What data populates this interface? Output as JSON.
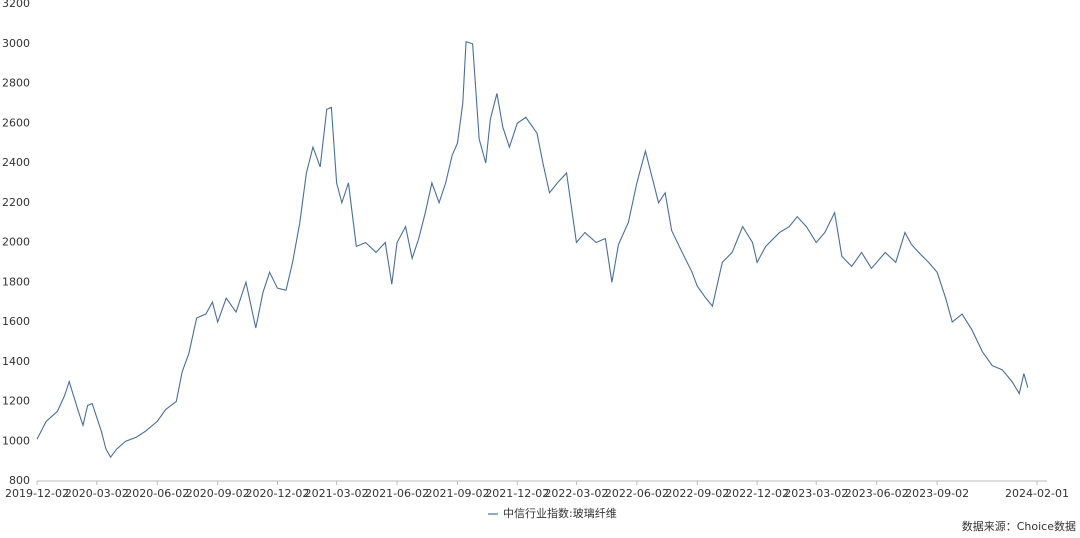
{
  "chart_data": {
    "type": "line",
    "x": [
      "2019-12-02",
      "2019-12-16",
      "2020-01-02",
      "2020-01-13",
      "2020-01-20",
      "2020-02-03",
      "2020-02-10",
      "2020-02-17",
      "2020-02-24",
      "2020-03-02",
      "2020-03-09",
      "2020-03-16",
      "2020-03-23",
      "2020-04-01",
      "2020-04-15",
      "2020-05-01",
      "2020-05-15",
      "2020-06-02",
      "2020-06-15",
      "2020-07-01",
      "2020-07-10",
      "2020-07-20",
      "2020-08-01",
      "2020-08-15",
      "2020-08-25",
      "2020-09-02",
      "2020-09-15",
      "2020-09-30",
      "2020-10-15",
      "2020-10-30",
      "2020-11-10",
      "2020-11-20",
      "2020-12-02",
      "2020-12-15",
      "2020-12-25",
      "2021-01-05",
      "2021-01-15",
      "2021-01-25",
      "2021-02-05",
      "2021-02-15",
      "2021-02-22",
      "2021-03-02",
      "2021-03-10",
      "2021-03-20",
      "2021-04-01",
      "2021-04-15",
      "2021-05-01",
      "2021-05-15",
      "2021-05-25",
      "2021-06-02",
      "2021-06-15",
      "2021-06-25",
      "2021-07-05",
      "2021-07-15",
      "2021-07-25",
      "2021-08-05",
      "2021-08-15",
      "2021-08-25",
      "2021-09-02",
      "2021-09-10",
      "2021-09-15",
      "2021-09-25",
      "2021-10-05",
      "2021-10-15",
      "2021-10-22",
      "2021-11-01",
      "2021-11-10",
      "2021-11-20",
      "2021-12-02",
      "2021-12-15",
      "2022-01-01",
      "2022-01-10",
      "2022-01-20",
      "2022-02-01",
      "2022-02-15",
      "2022-03-02",
      "2022-03-15",
      "2022-04-01",
      "2022-04-15",
      "2022-04-25",
      "2022-05-05",
      "2022-05-20",
      "2022-06-02",
      "2022-06-15",
      "2022-06-25",
      "2022-07-05",
      "2022-07-15",
      "2022-07-25",
      "2022-08-10",
      "2022-08-25",
      "2022-09-02",
      "2022-09-15",
      "2022-09-25",
      "2022-10-10",
      "2022-10-25",
      "2022-11-10",
      "2022-11-25",
      "2022-12-02",
      "2022-12-15",
      "2023-01-05",
      "2023-01-20",
      "2023-02-01",
      "2023-02-15",
      "2023-03-02",
      "2023-03-15",
      "2023-03-30",
      "2023-04-10",
      "2023-04-25",
      "2023-05-10",
      "2023-05-25",
      "2023-06-02",
      "2023-06-15",
      "2023-07-01",
      "2023-07-15",
      "2023-07-25",
      "2023-08-05",
      "2023-08-20",
      "2023-09-02",
      "2023-09-15",
      "2023-09-25",
      "2023-10-10",
      "2023-10-25",
      "2023-11-10",
      "2023-11-25",
      "2023-12-10",
      "2023-12-25",
      "2024-01-05",
      "2024-01-12",
      "2024-01-18"
    ],
    "series": [
      {
        "name": "中信行业指数:玻璃纤维",
        "color": "#4a6f98",
        "values": [
          1010,
          1100,
          1150,
          1230,
          1300,
          1150,
          1080,
          1180,
          1190,
          1120,
          1050,
          960,
          920,
          960,
          1000,
          1020,
          1050,
          1100,
          1160,
          1200,
          1350,
          1440,
          1620,
          1640,
          1700,
          1600,
          1720,
          1650,
          1800,
          1570,
          1750,
          1850,
          1770,
          1760,
          1900,
          2100,
          2350,
          2480,
          2380,
          2670,
          2680,
          2300,
          2200,
          2300,
          1980,
          2000,
          1950,
          2000,
          1790,
          2000,
          2080,
          1920,
          2020,
          2150,
          2300,
          2200,
          2300,
          2440,
          2500,
          2700,
          3010,
          3000,
          2520,
          2400,
          2620,
          2750,
          2580,
          2480,
          2600,
          2630,
          2550,
          2400,
          2250,
          2300,
          2350,
          2000,
          2050,
          2000,
          2020,
          1800,
          1990,
          2100,
          2300,
          2460,
          2330,
          2200,
          2250,
          2060,
          1950,
          1850,
          1780,
          1720,
          1680,
          1900,
          1950,
          2080,
          2000,
          1900,
          1980,
          2050,
          2080,
          2130,
          2080,
          2000,
          2050,
          2150,
          1930,
          1880,
          1950,
          1870,
          1900,
          1950,
          1900,
          2050,
          1990,
          1950,
          1900,
          1850,
          1720,
          1600,
          1640,
          1560,
          1450,
          1380,
          1360,
          1300,
          1240,
          1340,
          1270
        ]
      }
    ],
    "xlim": [
      "2019-12-02",
      "2024-02-01"
    ],
    "xticks": [
      "2019-12-02",
      "2020-03-02",
      "2020-06-02",
      "2020-09-02",
      "2020-12-02",
      "2021-03-02",
      "2021-06-02",
      "2021-09-02",
      "2021-12-02",
      "2022-03-02",
      "2022-06-02",
      "2022-09-02",
      "2022-12-02",
      "2023-03-02",
      "2023-06-02",
      "2023-09-02",
      "2024-02-01"
    ],
    "ylim": [
      800,
      3200
    ],
    "yticks": [
      800,
      1000,
      1200,
      1400,
      1600,
      1800,
      2000,
      2200,
      2400,
      2600,
      2800,
      3000,
      3200
    ],
    "source": "数据来源：Choice数据",
    "legend": "bottom"
  }
}
